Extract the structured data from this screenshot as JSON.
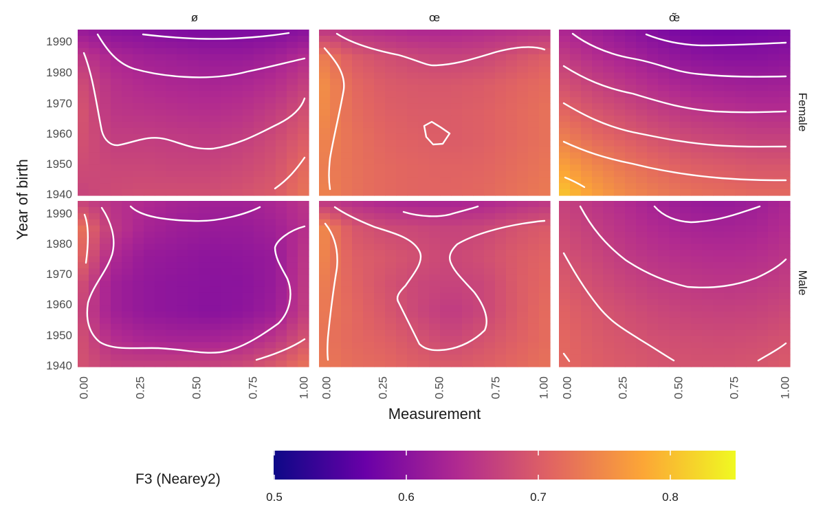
{
  "chart_data": {
    "type": "heatmap",
    "facet_columns": [
      "ø",
      "œ",
      "œ̃"
    ],
    "facet_rows": [
      "Female",
      "Male"
    ],
    "xlabel": "Measurement",
    "ylabel": "Year of birth",
    "x_ticks": [
      "0.00",
      "0.25",
      "0.50",
      "0.75",
      "1.00"
    ],
    "x_range": [
      0,
      1
    ],
    "y_ticks": [
      "1940",
      "1950",
      "1960",
      "1970",
      "1980",
      "1990"
    ],
    "y_range": [
      1940,
      1994
    ],
    "contours": "white contour lines",
    "legend": {
      "title": "F3 (Nearey2)",
      "position": "bottom",
      "ticks": [
        "0.5",
        "0.6",
        "0.7",
        "0.8"
      ],
      "range": [
        0.5,
        0.85
      ],
      "palette": [
        "#0d0887",
        "#6a00a8",
        "#b12a90",
        "#e16462",
        "#fca636",
        "#f0f921"
      ]
    },
    "panels": [
      {
        "col": "ø",
        "row": "Female",
        "grid": [
          [
            0.615,
            0.6,
            0.595,
            0.59,
            0.588,
            0.588,
            0.59,
            0.6
          ],
          [
            0.66,
            0.635,
            0.625,
            0.62,
            0.615,
            0.615,
            0.625,
            0.645
          ],
          [
            0.685,
            0.65,
            0.64,
            0.635,
            0.632,
            0.635,
            0.645,
            0.67
          ],
          [
            0.695,
            0.655,
            0.652,
            0.648,
            0.645,
            0.65,
            0.665,
            0.69
          ],
          [
            0.69,
            0.665,
            0.665,
            0.662,
            0.66,
            0.665,
            0.68,
            0.705
          ],
          [
            0.68,
            0.675,
            0.675,
            0.672,
            0.672,
            0.678,
            0.69,
            0.72
          ],
          [
            0.67,
            0.68,
            0.685,
            0.685,
            0.685,
            0.69,
            0.7,
            0.73
          ]
        ]
      },
      {
        "col": "œ",
        "row": "Female",
        "grid": [
          [
            0.655,
            0.645,
            0.64,
            0.635,
            0.635,
            0.64,
            0.645,
            0.65
          ],
          [
            0.74,
            0.7,
            0.685,
            0.675,
            0.67,
            0.675,
            0.69,
            0.705
          ],
          [
            0.76,
            0.715,
            0.7,
            0.695,
            0.695,
            0.7,
            0.71,
            0.72
          ],
          [
            0.755,
            0.72,
            0.705,
            0.7,
            0.7,
            0.705,
            0.715,
            0.725
          ],
          [
            0.745,
            0.725,
            0.71,
            0.705,
            0.7,
            0.705,
            0.715,
            0.725
          ],
          [
            0.74,
            0.725,
            0.715,
            0.71,
            0.708,
            0.71,
            0.72,
            0.73
          ],
          [
            0.745,
            0.725,
            0.715,
            0.71,
            0.71,
            0.715,
            0.725,
            0.735
          ]
        ]
      },
      {
        "col": "œ̃",
        "row": "Female",
        "grid": [
          [
            0.635,
            0.62,
            0.605,
            0.59,
            0.58,
            0.578,
            0.58,
            0.585
          ],
          [
            0.665,
            0.645,
            0.63,
            0.615,
            0.605,
            0.6,
            0.6,
            0.605
          ],
          [
            0.69,
            0.67,
            0.655,
            0.64,
            0.63,
            0.625,
            0.622,
            0.625
          ],
          [
            0.715,
            0.695,
            0.68,
            0.665,
            0.655,
            0.65,
            0.645,
            0.645
          ],
          [
            0.745,
            0.72,
            0.705,
            0.69,
            0.68,
            0.675,
            0.67,
            0.67
          ],
          [
            0.78,
            0.75,
            0.73,
            0.715,
            0.705,
            0.7,
            0.695,
            0.695
          ],
          [
            0.81,
            0.775,
            0.75,
            0.735,
            0.725,
            0.72,
            0.715,
            0.715
          ]
        ]
      },
      {
        "col": "ø",
        "row": "Male",
        "grid": [
          [
            0.67,
            0.65,
            0.64,
            0.63,
            0.625,
            0.625,
            0.635,
            0.655
          ],
          [
            0.735,
            0.66,
            0.63,
            0.62,
            0.615,
            0.615,
            0.625,
            0.65
          ],
          [
            0.72,
            0.64,
            0.615,
            0.61,
            0.605,
            0.607,
            0.615,
            0.66
          ],
          [
            0.69,
            0.625,
            0.61,
            0.605,
            0.602,
            0.603,
            0.615,
            0.665
          ],
          [
            0.68,
            0.625,
            0.61,
            0.605,
            0.6,
            0.605,
            0.62,
            0.67
          ],
          [
            0.69,
            0.645,
            0.632,
            0.628,
            0.628,
            0.635,
            0.655,
            0.695
          ],
          [
            0.69,
            0.67,
            0.67,
            0.672,
            0.672,
            0.68,
            0.7,
            0.73
          ]
        ]
      },
      {
        "col": "œ",
        "row": "Male",
        "grid": [
          [
            0.655,
            0.645,
            0.635,
            0.63,
            0.63,
            0.635,
            0.645,
            0.655
          ],
          [
            0.755,
            0.695,
            0.68,
            0.675,
            0.67,
            0.675,
            0.69,
            0.7
          ],
          [
            0.75,
            0.705,
            0.695,
            0.685,
            0.675,
            0.685,
            0.7,
            0.71
          ],
          [
            0.74,
            0.71,
            0.69,
            0.675,
            0.67,
            0.675,
            0.7,
            0.715
          ],
          [
            0.735,
            0.715,
            0.695,
            0.675,
            0.66,
            0.675,
            0.7,
            0.72
          ],
          [
            0.73,
            0.715,
            0.705,
            0.69,
            0.675,
            0.69,
            0.705,
            0.72
          ],
          [
            0.735,
            0.72,
            0.715,
            0.705,
            0.7,
            0.705,
            0.715,
            0.725
          ]
        ]
      },
      {
        "col": "œ̃",
        "row": "Male",
        "grid": [
          [
            0.67,
            0.655,
            0.64,
            0.625,
            0.615,
            0.612,
            0.62,
            0.635
          ],
          [
            0.68,
            0.665,
            0.65,
            0.638,
            0.63,
            0.628,
            0.632,
            0.645
          ],
          [
            0.69,
            0.675,
            0.66,
            0.65,
            0.645,
            0.642,
            0.645,
            0.655
          ],
          [
            0.7,
            0.685,
            0.672,
            0.662,
            0.658,
            0.655,
            0.657,
            0.665
          ],
          [
            0.71,
            0.695,
            0.684,
            0.675,
            0.67,
            0.668,
            0.67,
            0.678
          ],
          [
            0.715,
            0.7,
            0.692,
            0.685,
            0.682,
            0.68,
            0.683,
            0.69
          ],
          [
            0.715,
            0.705,
            0.698,
            0.692,
            0.69,
            0.69,
            0.693,
            0.7
          ]
        ]
      }
    ]
  }
}
